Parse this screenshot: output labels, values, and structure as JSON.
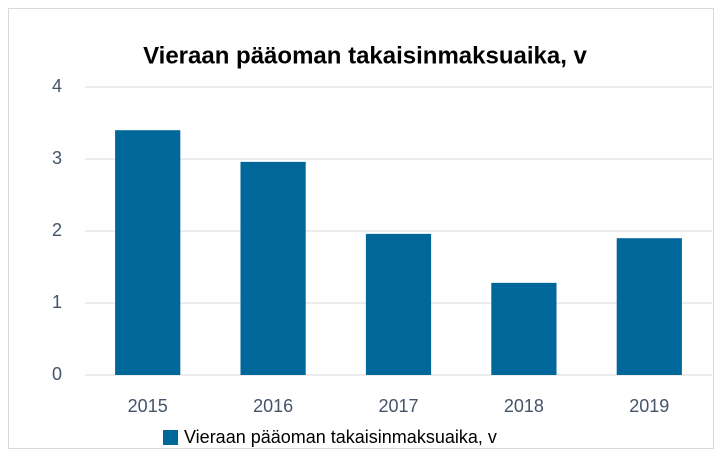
{
  "chart_data": {
    "type": "bar",
    "title": "Vieraan pääoman takaisinmaksuaika, v",
    "categories": [
      "2015",
      "2016",
      "2017",
      "2018",
      "2019"
    ],
    "series": [
      {
        "name": "Vieraan pääoman takaisinmaksuaika, v",
        "color": "#00679b",
        "values": [
          3.4,
          2.96,
          1.96,
          1.28,
          1.9
        ]
      }
    ],
    "ylim": [
      0,
      4
    ],
    "yticks": [
      0,
      1,
      2,
      3,
      4
    ],
    "grid": true,
    "legend": "bottom"
  }
}
